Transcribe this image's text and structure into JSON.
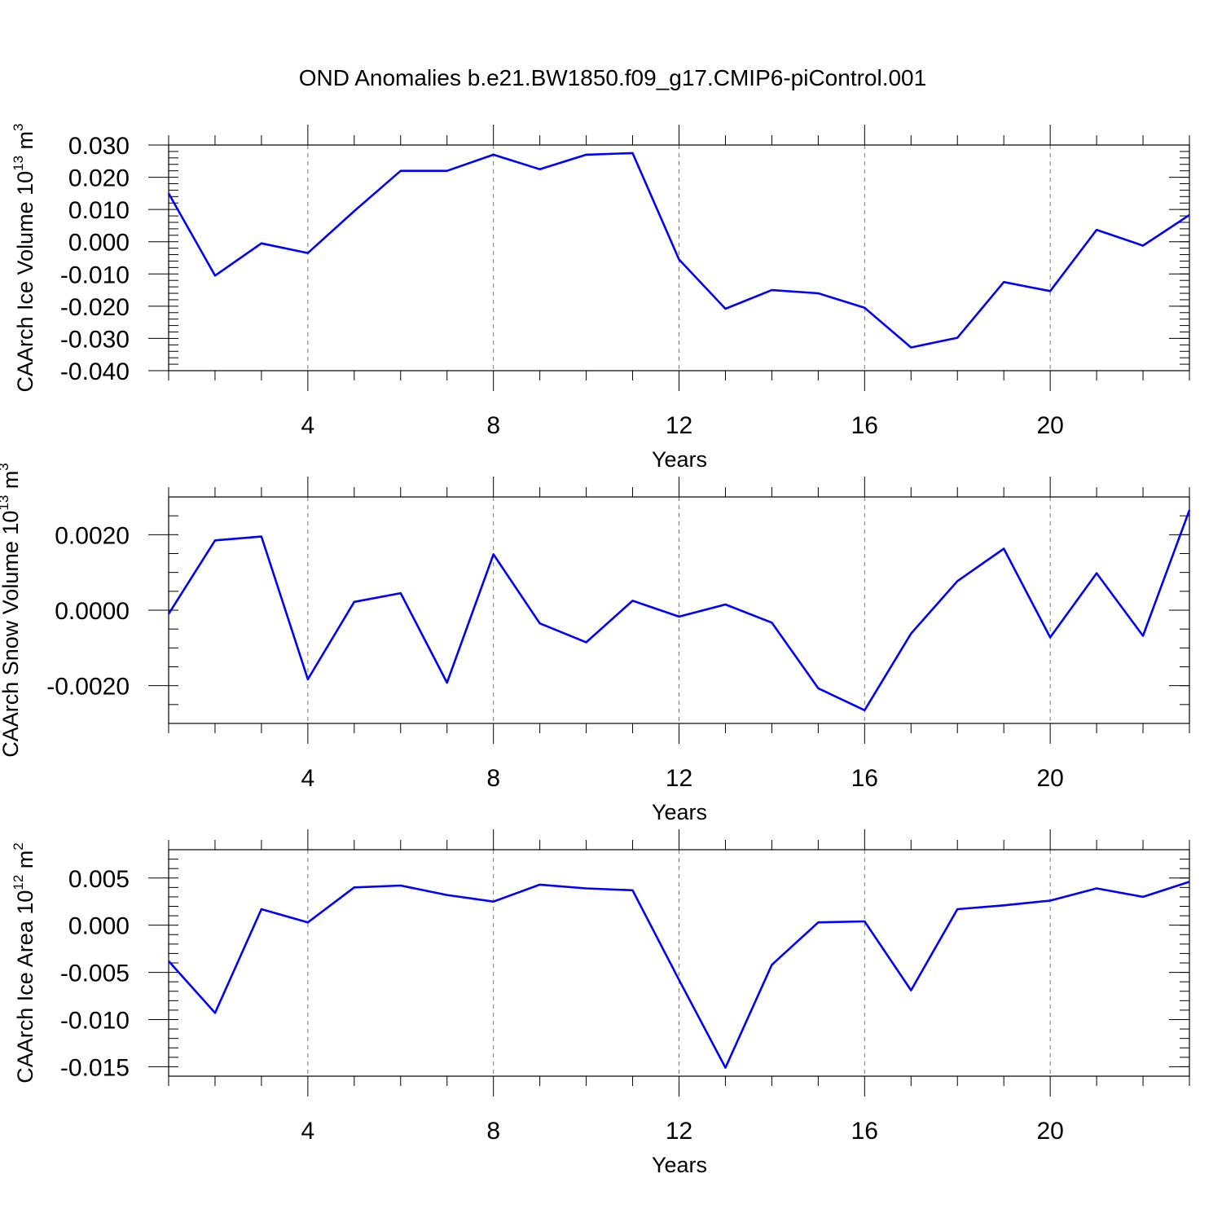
{
  "title": "OND Anomalies b.e21.BW1850.f09_g17.CMIP6-piControl.001",
  "line_color": "#0000ff",
  "chart_data": [
    {
      "type": "line",
      "ylabel": {
        "text": "CAArch Ice Volume 10",
        "exp": "13",
        "unit": " m",
        "unit_exp": "3"
      },
      "xlabel": "Years",
      "xlim": [
        1,
        23
      ],
      "ylim": [
        -0.04,
        0.03
      ],
      "xticks": [
        4,
        8,
        12,
        16,
        20
      ],
      "xtick_labels": [
        "4",
        "8",
        "12",
        "16",
        "20"
      ],
      "yticks": [
        0.03,
        0.02,
        0.01,
        0.0,
        -0.01,
        -0.02,
        -0.03,
        -0.04
      ],
      "ytick_labels": [
        "0.030",
        "0.020",
        "0.010",
        "0.000",
        "-0.010",
        "-0.020",
        "-0.030",
        "-0.040"
      ],
      "yminor_step": 0.002,
      "x": [
        1,
        2,
        3,
        4,
        5,
        6,
        7,
        8,
        9,
        10,
        11,
        12,
        13,
        14,
        15,
        16,
        17,
        18,
        19,
        20,
        21,
        22,
        23
      ],
      "values": [
        0.015,
        -0.0105,
        -0.0005,
        -0.0035,
        0.0095,
        0.022,
        0.022,
        0.027,
        0.0225,
        0.027,
        0.0275,
        -0.0055,
        -0.0208,
        -0.015,
        -0.016,
        -0.0205,
        -0.0328,
        -0.0298,
        -0.0125,
        -0.0153,
        0.0037,
        -0.0012,
        0.0083
      ]
    },
    {
      "type": "line",
      "ylabel": {
        "text": "CAArch Snow Volume 10",
        "exp": "13",
        "unit": " m",
        "unit_exp": "3"
      },
      "xlabel": "Years",
      "xlim": [
        1,
        23
      ],
      "ylim": [
        -0.003,
        0.003
      ],
      "xticks": [
        4,
        8,
        12,
        16,
        20
      ],
      "xtick_labels": [
        "4",
        "8",
        "12",
        "16",
        "20"
      ],
      "yticks": [
        0.002,
        0.0,
        -0.002
      ],
      "ytick_labels": [
        "0.0020",
        "0.0000",
        "-0.0020"
      ],
      "yminor_step": 0.0005,
      "x": [
        1,
        2,
        3,
        4,
        5,
        6,
        7,
        8,
        9,
        10,
        11,
        12,
        13,
        14,
        15,
        16,
        17,
        18,
        19,
        20,
        21,
        22,
        23
      ],
      "values": [
        -0.0001,
        0.00185,
        0.00195,
        -0.00183,
        0.00022,
        0.00045,
        -0.00192,
        0.00148,
        -0.00035,
        -0.00085,
        0.00025,
        -0.00017,
        0.00015,
        -0.00033,
        -0.00207,
        -0.00265,
        -0.00062,
        0.00077,
        0.00163,
        -0.00072,
        0.00098,
        -0.00068,
        0.00265
      ]
    },
    {
      "type": "line",
      "ylabel": {
        "text": "CAArch Ice Area 10",
        "exp": "12",
        "unit": " m",
        "unit_exp": "2"
      },
      "xlabel": "Years",
      "xlim": [
        1,
        23
      ],
      "ylim": [
        -0.016,
        0.008
      ],
      "xticks": [
        4,
        8,
        12,
        16,
        20
      ],
      "xtick_labels": [
        "4",
        "8",
        "12",
        "16",
        "20"
      ],
      "yticks": [
        0.005,
        0.0,
        -0.005,
        -0.01,
        -0.015
      ],
      "ytick_labels": [
        "0.005",
        "0.000",
        "-0.005",
        "-0.010",
        "-0.015"
      ],
      "yminor_step": 0.001,
      "x": [
        1,
        2,
        3,
        4,
        5,
        6,
        7,
        8,
        9,
        10,
        11,
        12,
        13,
        14,
        15,
        16,
        17,
        18,
        19,
        20,
        21,
        22,
        23
      ],
      "values": [
        -0.0038,
        -0.0093,
        0.0017,
        0.0003,
        0.004,
        0.0042,
        0.0032,
        0.0025,
        0.0043,
        0.0039,
        0.0037,
        -0.0058,
        -0.0151,
        -0.0042,
        0.0003,
        0.0004,
        -0.0069,
        0.0017,
        0.0021,
        0.0026,
        0.0039,
        0.003,
        0.0046
      ]
    }
  ]
}
